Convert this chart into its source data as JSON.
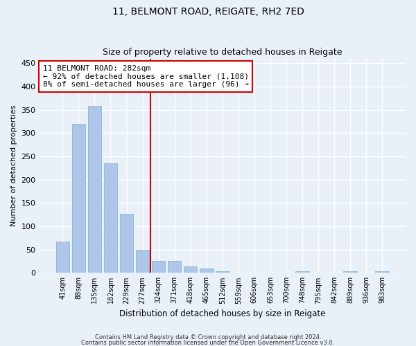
{
  "title1": "11, BELMONT ROAD, REIGATE, RH2 7ED",
  "title2": "Size of property relative to detached houses in Reigate",
  "xlabel": "Distribution of detached houses by size in Reigate",
  "ylabel": "Number of detached properties",
  "categories": [
    "41sqm",
    "88sqm",
    "135sqm",
    "182sqm",
    "229sqm",
    "277sqm",
    "324sqm",
    "371sqm",
    "418sqm",
    "465sqm",
    "512sqm",
    "559sqm",
    "606sqm",
    "653sqm",
    "700sqm",
    "748sqm",
    "795sqm",
    "842sqm",
    "889sqm",
    "936sqm",
    "983sqm"
  ],
  "values": [
    67,
    320,
    358,
    235,
    127,
    50,
    25,
    25,
    14,
    9,
    3,
    1,
    1,
    0,
    0,
    4,
    0,
    0,
    3,
    0,
    3
  ],
  "bar_color": "#aec6e8",
  "bar_edge_color": "#7bafd4",
  "vline_x": 5.5,
  "vline_color": "#cc0000",
  "annotation_text": "11 BELMONT ROAD: 282sqm\n← 92% of detached houses are smaller (1,108)\n8% of semi-detached houses are larger (96) →",
  "ylim": [
    0,
    460
  ],
  "yticks": [
    0,
    50,
    100,
    150,
    200,
    250,
    300,
    350,
    400,
    450
  ],
  "footer1": "Contains HM Land Registry data © Crown copyright and database right 2024.",
  "footer2": "Contains public sector information licensed under the Open Government Licence v3.0.",
  "bg_color": "#eaf0f8",
  "plot_bg_color": "#eaf0f8",
  "grid_color": "#ffffff",
  "title1_fontsize": 10,
  "title2_fontsize": 9
}
